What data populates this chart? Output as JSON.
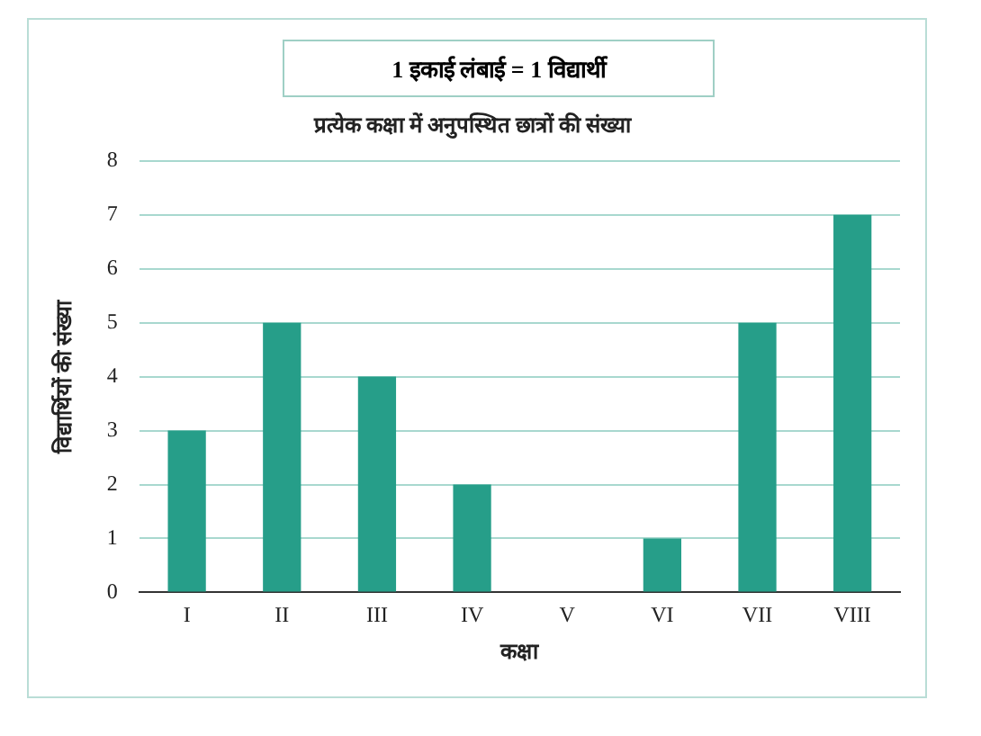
{
  "chart_data": {
    "type": "bar",
    "title": "प्रत्येक कक्षा में अनुपस्थित छात्रों की संख्या",
    "xlabel": "कक्षा",
    "ylabel": "विद्यार्थियों की संख्या",
    "annotations": [
      "1 इकाई लंबाई  = 1 विद्यार्थी"
    ],
    "categories": [
      "I",
      "II",
      "III",
      "IV",
      "V",
      "VI",
      "VII",
      "VIII"
    ],
    "values": [
      3,
      5,
      4,
      2,
      0,
      1,
      5,
      7
    ],
    "color": "#269e89",
    "ylim": [
      0,
      8
    ],
    "yticks": [
      0,
      1,
      2,
      3,
      4,
      5,
      6,
      7,
      8
    ],
    "grid": "y",
    "legend": false
  }
}
